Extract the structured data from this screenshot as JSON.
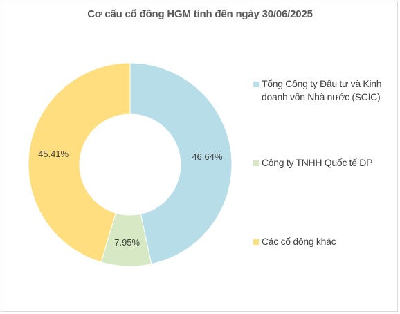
{
  "chart_data": {
    "type": "pie",
    "title": "Cơ cấu cổ đông HGM tính đến ngày 30/06/2025",
    "labels": [
      "Tổng Công ty Đầu tư và Kinh doanh vốn Nhà nước (SCIC)",
      "Công ty TNHH Quốc tế DP",
      "Các cổ đông khác"
    ],
    "values": [
      46.64,
      7.95,
      45.41
    ],
    "value_labels": [
      "46.64%",
      "7.95%",
      "45.41%"
    ],
    "colors": [
      "#b7dde8",
      "#d7e9c4",
      "#fede7f"
    ],
    "donut": true,
    "legend_position": "right"
  }
}
